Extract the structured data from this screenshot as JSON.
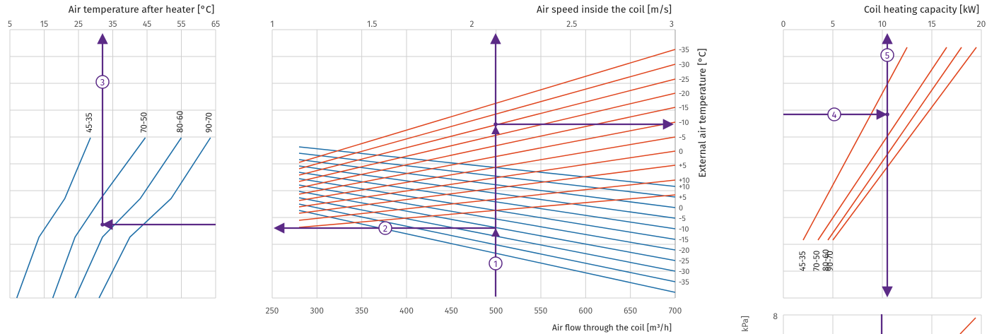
{
  "colors": {
    "blue": "#1f6fa8",
    "red": "#e0461f",
    "purple": "#5b2a86",
    "grid": "#cfcfcf"
  },
  "chart_data": [
    {
      "id": "left",
      "type": "line",
      "title": "Air temperature after heater [°C]",
      "x_ticks": [
        "5",
        "15",
        "25",
        "35",
        "45",
        "55",
        "65"
      ],
      "xlim": [
        5,
        65
      ],
      "series": [
        {
          "name": "45-35",
          "points": [
            [
              7,
              -1.0
            ],
            [
              13.5,
              -0.62
            ],
            [
              21,
              -0.38
            ],
            [
              28.5,
              0.0
            ]
          ]
        },
        {
          "name": "70-50",
          "points": [
            [
              17.5,
              -1.0
            ],
            [
              24,
              -0.62
            ],
            [
              31.5,
              -0.38
            ],
            [
              44.5,
              0.0
            ]
          ]
        },
        {
          "name": "80-60",
          "points": [
            [
              24,
              -1.0
            ],
            [
              32,
              -0.62
            ],
            [
              43,
              -0.38
            ],
            [
              55,
              0.0
            ]
          ]
        },
        {
          "name": "90-70",
          "points": [
            [
              31,
              -1.0
            ],
            [
              40,
              -0.62
            ],
            [
              52,
              -0.38
            ],
            [
              63.5,
              0.0
            ]
          ]
        }
      ],
      "step": "3"
    },
    {
      "id": "middle",
      "type": "line",
      "title": "Air speed inside the coil [m/s]",
      "xlabel": "Air flow through the coil [m³/h]",
      "ylabel": "External air temperature [°C]",
      "top_ticks": [
        "1",
        "1.5",
        "2",
        "2.5",
        "3"
      ],
      "top_lim": [
        1,
        3
      ],
      "bottom_ticks": [
        "250",
        "300",
        "350",
        "400",
        "450",
        "500",
        "550",
        "600",
        "650",
        "700"
      ],
      "bottom_lim": [
        250,
        700
      ],
      "xlim": [
        250,
        700
      ],
      "right_ticks_upper": [
        "-35",
        "-30",
        "-25",
        "-20",
        "-15",
        "-10",
        "-5",
        "0",
        "+5",
        "+10"
      ],
      "right_ticks_lower": [
        "+10",
        "+5",
        "0",
        "-5",
        "-10",
        "-15",
        "-20",
        "-25",
        "-30",
        "-35"
      ],
      "red_lines": [
        {
          "x": [
            280,
            700
          ],
          "start": 230,
          "end": 70
        },
        {
          "x": [
            280,
            700
          ],
          "start": 239,
          "end": 91
        },
        {
          "x": [
            280,
            700
          ],
          "start": 248,
          "end": 112
        },
        {
          "x": [
            280,
            700
          ],
          "start": 257,
          "end": 132
        },
        {
          "x": [
            280,
            700
          ],
          "start": 266,
          "end": 152
        },
        {
          "x": [
            280,
            700
          ],
          "start": 275,
          "end": 173
        },
        {
          "x": [
            280,
            700
          ],
          "start": 284,
          "end": 194
        },
        {
          "x": [
            280,
            700
          ],
          "start": 293,
          "end": 214
        },
        {
          "x": [
            280,
            700
          ],
          "start": 302,
          "end": 234
        },
        {
          "x": [
            280,
            700
          ],
          "start": 312,
          "end": 255
        },
        {
          "x": [
            280,
            700
          ],
          "start": 322,
          "end": 276
        }
      ],
      "blue_lines": [
        {
          "x": [
            280,
            700
          ],
          "start": 208,
          "end": 264
        },
        {
          "x": [
            280,
            700
          ],
          "start": 217,
          "end": 279
        },
        {
          "x": [
            280,
            700
          ],
          "start": 226,
          "end": 294
        },
        {
          "x": [
            280,
            700
          ],
          "start": 235,
          "end": 309
        },
        {
          "x": [
            280,
            700
          ],
          "start": 244,
          "end": 324
        },
        {
          "x": [
            280,
            700
          ],
          "start": 253,
          "end": 339
        },
        {
          "x": [
            280,
            700
          ],
          "start": 262,
          "end": 354
        },
        {
          "x": [
            280,
            700
          ],
          "start": 271,
          "end": 369
        },
        {
          "x": [
            280,
            700
          ],
          "start": 280,
          "end": 384
        },
        {
          "x": [
            280,
            700
          ],
          "start": 289,
          "end": 399
        },
        {
          "x": [
            280,
            700
          ],
          "start": 298,
          "end": 414
        }
      ],
      "steps": [
        "1",
        "2"
      ]
    },
    {
      "id": "right",
      "type": "line",
      "title": "Coil heating capacity [kW]",
      "x_ticks": [
        "0",
        "5",
        "10",
        "15",
        "20"
      ],
      "xlim": [
        0,
        20
      ],
      "series": [
        {
          "name": "45-35",
          "points": [
            [
              2.0,
              -1.0
            ],
            [
              12.5,
              0.0
            ]
          ]
        },
        {
          "name": "70-50",
          "points": [
            [
              3.5,
              -1.0
            ],
            [
              16.5,
              0.0
            ]
          ]
        },
        {
          "name": "80-60",
          "points": [
            [
              4.5,
              -1.0
            ],
            [
              18.0,
              0.0
            ]
          ]
        },
        {
          "name": "90-70",
          "points": [
            [
              5.0,
              -1.0
            ],
            [
              19.5,
              0.0
            ]
          ]
        }
      ],
      "steps": [
        "4",
        "5"
      ],
      "lower_tick": "8",
      "lower_label_fragment": "kPa]"
    }
  ]
}
